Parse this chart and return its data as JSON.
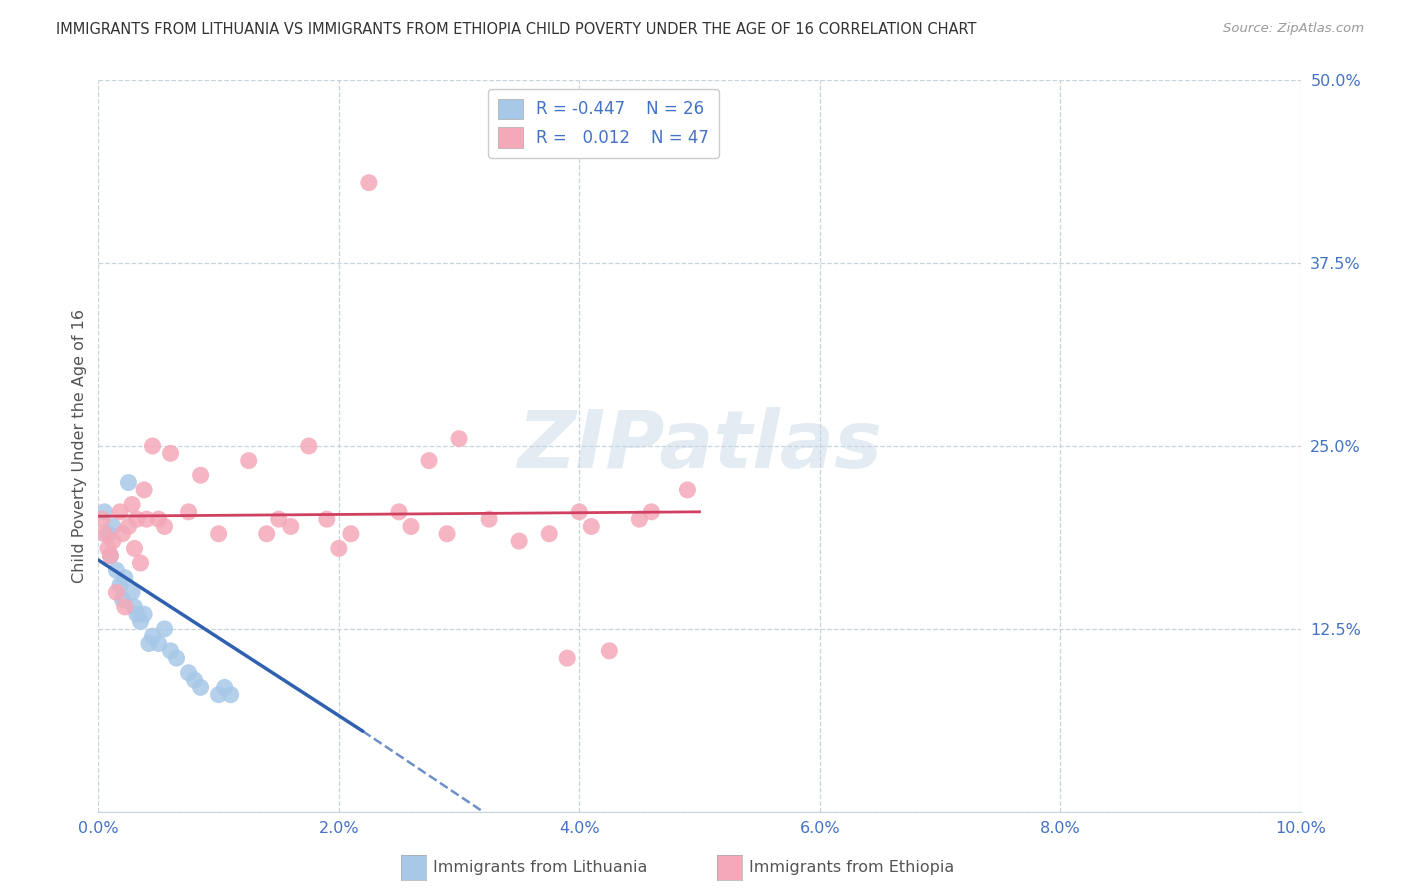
{
  "title": "IMMIGRANTS FROM LITHUANIA VS IMMIGRANTS FROM ETHIOPIA CHILD POVERTY UNDER THE AGE OF 16 CORRELATION CHART",
  "source": "Source: ZipAtlas.com",
  "ylabel": "Child Poverty Under the Age of 16",
  "xmin": 0.0,
  "xmax": 10.0,
  "ymin": 0.0,
  "ymax": 50.0,
  "ytick_vals": [
    0,
    12.5,
    25.0,
    37.5,
    50.0
  ],
  "xtick_vals": [
    0,
    2,
    4,
    6,
    8,
    10
  ],
  "xtick_labels": [
    "0.0%",
    "2.0%",
    "4.0%",
    "6.0%",
    "8.0%",
    "10.0%"
  ],
  "color_lithuania": "#a8c8e8",
  "color_ethiopia": "#f4a8b8",
  "trendline_lithuania_color": "#3060b0",
  "trendline_ethiopia_color": "#d04060",
  "background_color": "#ffffff",
  "grid_color": "#c8d4dc",
  "watermark_text": "ZIPatlas",
  "scatter_lithuania": [
    [
      0.05,
      20.5
    ],
    [
      0.08,
      19.0
    ],
    [
      0.1,
      17.5
    ],
    [
      0.12,
      19.5
    ],
    [
      0.15,
      16.5
    ],
    [
      0.18,
      15.5
    ],
    [
      0.2,
      14.5
    ],
    [
      0.22,
      16.0
    ],
    [
      0.25,
      22.5
    ],
    [
      0.28,
      15.0
    ],
    [
      0.3,
      14.0
    ],
    [
      0.32,
      13.5
    ],
    [
      0.35,
      13.0
    ],
    [
      0.38,
      13.5
    ],
    [
      0.42,
      11.5
    ],
    [
      0.45,
      12.0
    ],
    [
      0.5,
      11.5
    ],
    [
      0.55,
      12.5
    ],
    [
      0.6,
      11.0
    ],
    [
      0.65,
      10.5
    ],
    [
      0.75,
      9.5
    ],
    [
      0.8,
      9.0
    ],
    [
      0.85,
      8.5
    ],
    [
      1.0,
      8.0
    ],
    [
      1.05,
      8.5
    ],
    [
      1.1,
      8.0
    ]
  ],
  "scatter_ethiopia": [
    [
      0.03,
      20.0
    ],
    [
      0.05,
      19.0
    ],
    [
      0.08,
      18.0
    ],
    [
      0.1,
      17.5
    ],
    [
      0.12,
      18.5
    ],
    [
      0.15,
      15.0
    ],
    [
      0.18,
      20.5
    ],
    [
      0.2,
      19.0
    ],
    [
      0.22,
      14.0
    ],
    [
      0.25,
      19.5
    ],
    [
      0.28,
      21.0
    ],
    [
      0.3,
      18.0
    ],
    [
      0.32,
      20.0
    ],
    [
      0.35,
      17.0
    ],
    [
      0.38,
      22.0
    ],
    [
      0.4,
      20.0
    ],
    [
      0.45,
      25.0
    ],
    [
      0.5,
      20.0
    ],
    [
      0.55,
      19.5
    ],
    [
      0.6,
      24.5
    ],
    [
      0.75,
      20.5
    ],
    [
      0.85,
      23.0
    ],
    [
      1.0,
      19.0
    ],
    [
      1.25,
      24.0
    ],
    [
      1.4,
      19.0
    ],
    [
      1.5,
      20.0
    ],
    [
      1.6,
      19.5
    ],
    [
      1.75,
      25.0
    ],
    [
      1.9,
      20.0
    ],
    [
      2.0,
      18.0
    ],
    [
      2.1,
      19.0
    ],
    [
      2.25,
      43.0
    ],
    [
      2.5,
      20.5
    ],
    [
      2.6,
      19.5
    ],
    [
      2.75,
      24.0
    ],
    [
      2.9,
      19.0
    ],
    [
      3.0,
      25.5
    ],
    [
      3.25,
      20.0
    ],
    [
      3.5,
      18.5
    ],
    [
      3.75,
      19.0
    ],
    [
      3.9,
      10.5
    ],
    [
      4.0,
      20.5
    ],
    [
      4.1,
      19.5
    ],
    [
      4.25,
      11.0
    ],
    [
      4.5,
      20.0
    ],
    [
      4.6,
      20.5
    ],
    [
      4.9,
      22.0
    ]
  ],
  "trendline_lithuania_solid": [
    [
      0.0,
      17.2
    ],
    [
      2.2,
      5.5
    ]
  ],
  "trendline_lithuania_dashed": [
    [
      2.2,
      5.5
    ],
    [
      3.2,
      0.0
    ]
  ],
  "trendline_ethiopia_pts": [
    [
      0.0,
      20.2
    ],
    [
      5.0,
      20.5
    ]
  ]
}
